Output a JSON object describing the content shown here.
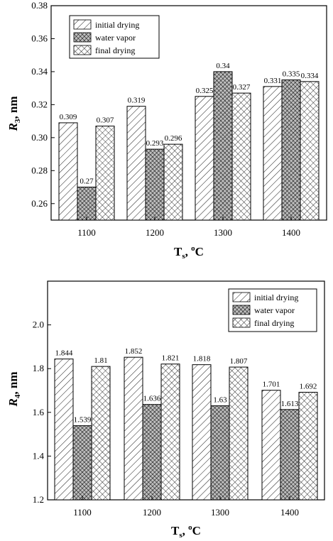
{
  "chart_data": [
    {
      "type": "bar",
      "categories": [
        "1100",
        "1200",
        "1300",
        "1400"
      ],
      "series": [
        {
          "name": "initial drying",
          "values": [
            0.309,
            0.319,
            0.325,
            0.331
          ],
          "labels": [
            "0.309",
            "0.319",
            "0.325",
            "0.331"
          ],
          "pattern": "diagonal"
        },
        {
          "name": "water vapor",
          "values": [
            0.27,
            0.293,
            0.34,
            0.335
          ],
          "labels": [
            "0.27",
            "0.293",
            "0.34",
            "0.335"
          ],
          "pattern": "dense-crosshatch"
        },
        {
          "name": "final drying",
          "values": [
            0.307,
            0.296,
            0.327,
            0.334
          ],
          "labels": [
            "0.307",
            "0.296",
            "0.327",
            "0.334"
          ],
          "pattern": "crosshatch"
        }
      ],
      "ylim": [
        0.25,
        0.38
      ],
      "yticks": [
        "0.26",
        "0.28",
        "0.30",
        "0.32",
        "0.34",
        "0.36",
        "0.38"
      ],
      "xlabel_main": "T",
      "xlabel_sub": "s",
      "xlabel_sep": ", ",
      "xlabel_sup": "o",
      "xlabel_unit": "C",
      "ylabel_main": "R",
      "ylabel_sub": "3",
      "ylabel_unit": ", nm",
      "legend_position": "top-left"
    },
    {
      "type": "bar",
      "categories": [
        "1100",
        "1200",
        "1300",
        "1400"
      ],
      "series": [
        {
          "name": "initial drying",
          "values": [
            1.844,
            1.852,
            1.818,
            1.701
          ],
          "labels": [
            "1.844",
            "1.852",
            "1.818",
            "1.701"
          ],
          "pattern": "diagonal"
        },
        {
          "name": "water vapor",
          "values": [
            1.539,
            1.636,
            1.63,
            1.613
          ],
          "labels": [
            "1.539",
            "1.636",
            "1.63",
            "1.613"
          ],
          "pattern": "dense-crosshatch"
        },
        {
          "name": "final drying",
          "values": [
            1.81,
            1.821,
            1.807,
            1.692
          ],
          "labels": [
            "1.81",
            "1.821",
            "1.807",
            "1.692"
          ],
          "pattern": "crosshatch"
        }
      ],
      "ylim": [
        1.2,
        2.2
      ],
      "yticks": [
        "1.2",
        "1.4",
        "1.6",
        "1.8",
        "2.0"
      ],
      "xlabel_main": "T",
      "xlabel_sub": "s",
      "xlabel_sep": ", ",
      "xlabel_sup": "o",
      "xlabel_unit": "C",
      "ylabel_main": "R",
      "ylabel_sub": "4",
      "ylabel_unit": ", nm",
      "legend_position": "top-right"
    }
  ]
}
